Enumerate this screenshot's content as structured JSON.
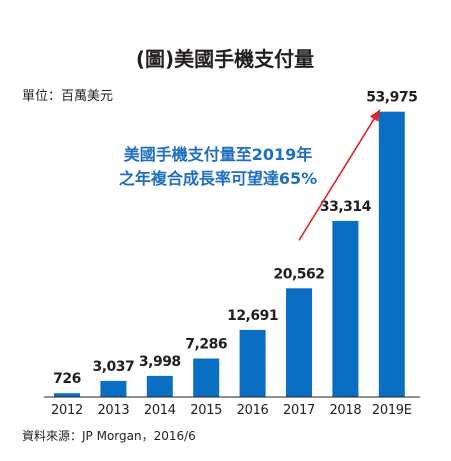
{
  "chart_data": {
    "type": "bar",
    "title": "(圖)美國手機支付量",
    "unit_label": "單位：百萬美元",
    "categories": [
      "2012",
      "2013",
      "2014",
      "2015",
      "2016",
      "2017",
      "2018",
      "2019E"
    ],
    "values": [
      726,
      3037,
      3998,
      7286,
      12691,
      20562,
      33314,
      53975
    ],
    "value_labels": [
      "726",
      "3,037",
      "3,998",
      "7,286",
      "12,691",
      "20,562",
      "33,314",
      "53,975"
    ],
    "ylim": [
      0,
      56000
    ],
    "grid": false,
    "bar_color": "#0a6fc2",
    "annotation": {
      "lines": [
        "美國手機支付量至2019年",
        "之年複合成長率可望達65%"
      ],
      "color": "#1f6fbf",
      "arrow_color": "#d9262b"
    },
    "source": "資料來源：JP Morgan，2016/6"
  }
}
